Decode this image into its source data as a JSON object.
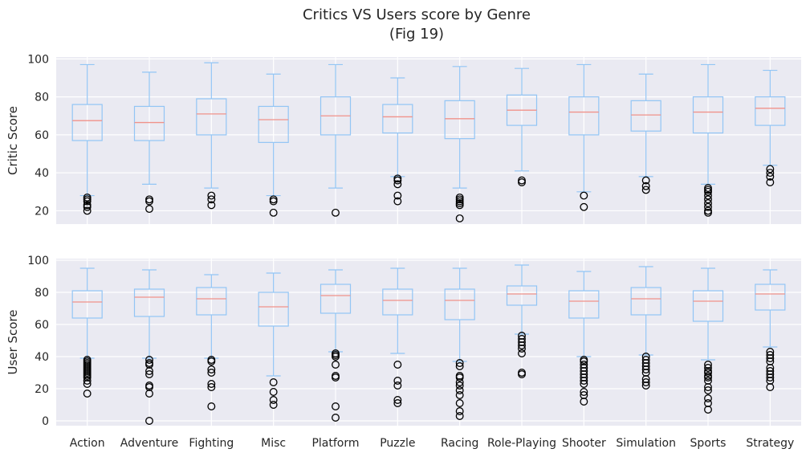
{
  "chart_data": {
    "type": "box",
    "title": "Critics VS Users score by Genre",
    "subtitle": "(Fig 19)",
    "categories": [
      "Action",
      "Adventure",
      "Fighting",
      "Misc",
      "Platform",
      "Puzzle",
      "Racing",
      "Role-Playing",
      "Shooter",
      "Simulation",
      "Sports",
      "Strategy"
    ],
    "panels": [
      {
        "ylabel": "Critic Score",
        "ylim": [
          13,
          101
        ],
        "yticks": [
          20,
          40,
          60,
          80,
          100
        ],
        "grid": true,
        "boxes": [
          {
            "whislo": 28,
            "q1": 57,
            "med": 67.5,
            "q3": 76,
            "whishi": 97,
            "fliers": [
              27,
              26,
              25,
              23,
              22,
              20
            ]
          },
          {
            "whislo": 34,
            "q1": 57,
            "med": 66.5,
            "q3": 75,
            "whishi": 93,
            "fliers": [
              26,
              25,
              21
            ]
          },
          {
            "whislo": 32,
            "q1": 60,
            "med": 71,
            "q3": 79,
            "whishi": 98,
            "fliers": [
              28,
              26,
              23
            ]
          },
          {
            "whislo": 28,
            "q1": 56,
            "med": 68,
            "q3": 75,
            "whishi": 92,
            "fliers": [
              26,
              25,
              19
            ]
          },
          {
            "whislo": 32,
            "q1": 60,
            "med": 70,
            "q3": 80,
            "whishi": 97,
            "fliers": [
              19
            ]
          },
          {
            "whislo": 38,
            "q1": 61,
            "med": 69.5,
            "q3": 76,
            "whishi": 90,
            "fliers": [
              37,
              36,
              34,
              28,
              25
            ]
          },
          {
            "whislo": 32,
            "q1": 58,
            "med": 68.5,
            "q3": 78,
            "whishi": 96,
            "fliers": [
              27,
              26,
              25,
              24,
              23,
              16
            ]
          },
          {
            "whislo": 41,
            "q1": 65,
            "med": 73,
            "q3": 81,
            "whishi": 95,
            "fliers": [
              36,
              35
            ]
          },
          {
            "whislo": 30,
            "q1": 60,
            "med": 72,
            "q3": 80,
            "whishi": 97,
            "fliers": [
              28,
              22
            ]
          },
          {
            "whislo": 38,
            "q1": 62,
            "med": 70.5,
            "q3": 78,
            "whishi": 92,
            "fliers": [
              36,
              33,
              31
            ]
          },
          {
            "whislo": 34,
            "q1": 61,
            "med": 72,
            "q3": 80,
            "whishi": 97,
            "fliers": [
              32,
              31,
              30,
              28,
              26,
              24,
              22,
              20,
              19
            ]
          },
          {
            "whislo": 44,
            "q1": 65,
            "med": 74,
            "q3": 80,
            "whishi": 94,
            "fliers": [
              42,
              40,
              38,
              35
            ]
          }
        ]
      },
      {
        "ylabel": "User Score",
        "ylim": [
          -3,
          101
        ],
        "yticks": [
          0,
          20,
          40,
          60,
          80,
          100
        ],
        "grid": true,
        "boxes": [
          {
            "whislo": 39,
            "q1": 64,
            "med": 74,
            "q3": 81,
            "whishi": 95,
            "fliers": [
              38,
              37,
              36,
              35,
              34,
              33,
              32,
              31,
              30,
              29,
              28,
              27,
              25,
              23,
              17
            ]
          },
          {
            "whislo": 39,
            "q1": 65,
            "med": 77,
            "q3": 82,
            "whishi": 94,
            "fliers": [
              38,
              36,
              35,
              31,
              29,
              22,
              21,
              17,
              0
            ]
          },
          {
            "whislo": 39,
            "q1": 66,
            "med": 76,
            "q3": 83,
            "whishi": 91,
            "fliers": [
              38,
              37,
              32,
              30,
              23,
              21,
              9
            ]
          },
          {
            "whislo": 28,
            "q1": 59,
            "med": 71,
            "q3": 80,
            "whishi": 92,
            "fliers": [
              24,
              18,
              13,
              10
            ]
          },
          {
            "whislo": 43,
            "q1": 67,
            "med": 78,
            "q3": 85,
            "whishi": 94,
            "fliers": [
              42,
              41,
              40,
              35,
              28,
              27,
              9,
              2
            ]
          },
          {
            "whislo": 42,
            "q1": 66,
            "med": 75,
            "q3": 82,
            "whishi": 95,
            "fliers": [
              35,
              25,
              22,
              13,
              11
            ]
          },
          {
            "whislo": 37,
            "q1": 63,
            "med": 75,
            "q3": 82,
            "whishi": 95,
            "fliers": [
              36,
              34,
              28,
              27,
              24,
              22,
              19,
              16,
              11,
              6,
              3
            ]
          },
          {
            "whislo": 54,
            "q1": 72,
            "med": 79,
            "q3": 84,
            "whishi": 97,
            "fliers": [
              53,
              51,
              49,
              47,
              45,
              42,
              30,
              29
            ]
          },
          {
            "whislo": 40,
            "q1": 64,
            "med": 74.5,
            "q3": 81,
            "whishi": 93,
            "fliers": [
              38,
              37,
              35,
              33,
              31,
              29,
              27,
              25,
              23,
              18,
              16,
              12
            ]
          },
          {
            "whislo": 41,
            "q1": 66,
            "med": 76,
            "q3": 83,
            "whishi": 96,
            "fliers": [
              40,
              38,
              36,
              34,
              32,
              30,
              26,
              24,
              22
            ]
          },
          {
            "whislo": 38,
            "q1": 62,
            "med": 74.5,
            "q3": 81,
            "whishi": 95,
            "fliers": [
              35,
              33,
              31,
              30,
              28,
              27,
              25,
              21,
              19,
              14,
              11,
              7
            ]
          },
          {
            "whislo": 46,
            "q1": 69,
            "med": 79,
            "q3": 85,
            "whishi": 94,
            "fliers": [
              43,
              41,
              39,
              37,
              33,
              31,
              29,
              27,
              25,
              21
            ]
          }
        ]
      }
    ]
  }
}
